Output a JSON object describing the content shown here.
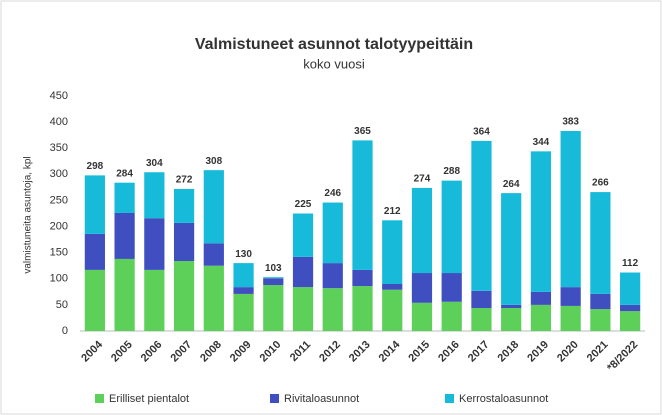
{
  "chart_data": {
    "type": "stacked_bar",
    "title": "Valmistuneet asunnot talotyypeittäin",
    "subtitle": "koko vuosi",
    "y_label": "valmistuneita asuntoja, kpl",
    "categories": [
      "2004",
      "2005",
      "2006",
      "2007",
      "2008",
      "2009",
      "2010",
      "2011",
      "2012",
      "2013",
      "2014",
      "2015",
      "2016",
      "2017",
      "2018",
      "2019",
      "2020",
      "2021",
      "*8/2022"
    ],
    "series": [
      {
        "name": "Erilliset pientalot",
        "color": "#5dd05a",
        "values": [
          117,
          138,
          117,
          134,
          125,
          71,
          88,
          84,
          82,
          86,
          79,
          54,
          56,
          44,
          44,
          50,
          48,
          42,
          38
        ]
      },
      {
        "name": "Rivitaloasunnot",
        "color": "#3f4fc0",
        "values": [
          69,
          88,
          99,
          73,
          43,
          13,
          13,
          58,
          48,
          31,
          11,
          57,
          55,
          33,
          6,
          25,
          36,
          29,
          12
        ]
      },
      {
        "name": "Kerrostaloasunnot",
        "color": "#17bbd9",
        "values": [
          112,
          58,
          88,
          65,
          140,
          46,
          2,
          83,
          116,
          248,
          122,
          163,
          177,
          287,
          214,
          269,
          299,
          195,
          62
        ]
      }
    ],
    "totals": [
      298,
      284,
      304,
      272,
      308,
      130,
      103,
      225,
      246,
      365,
      212,
      274,
      288,
      364,
      264,
      344,
      383,
      266,
      112
    ],
    "ylim": [
      0,
      450
    ],
    "yticks": [
      0,
      50,
      100,
      150,
      200,
      250,
      300,
      350,
      400,
      450
    ],
    "legend": "bottom"
  }
}
